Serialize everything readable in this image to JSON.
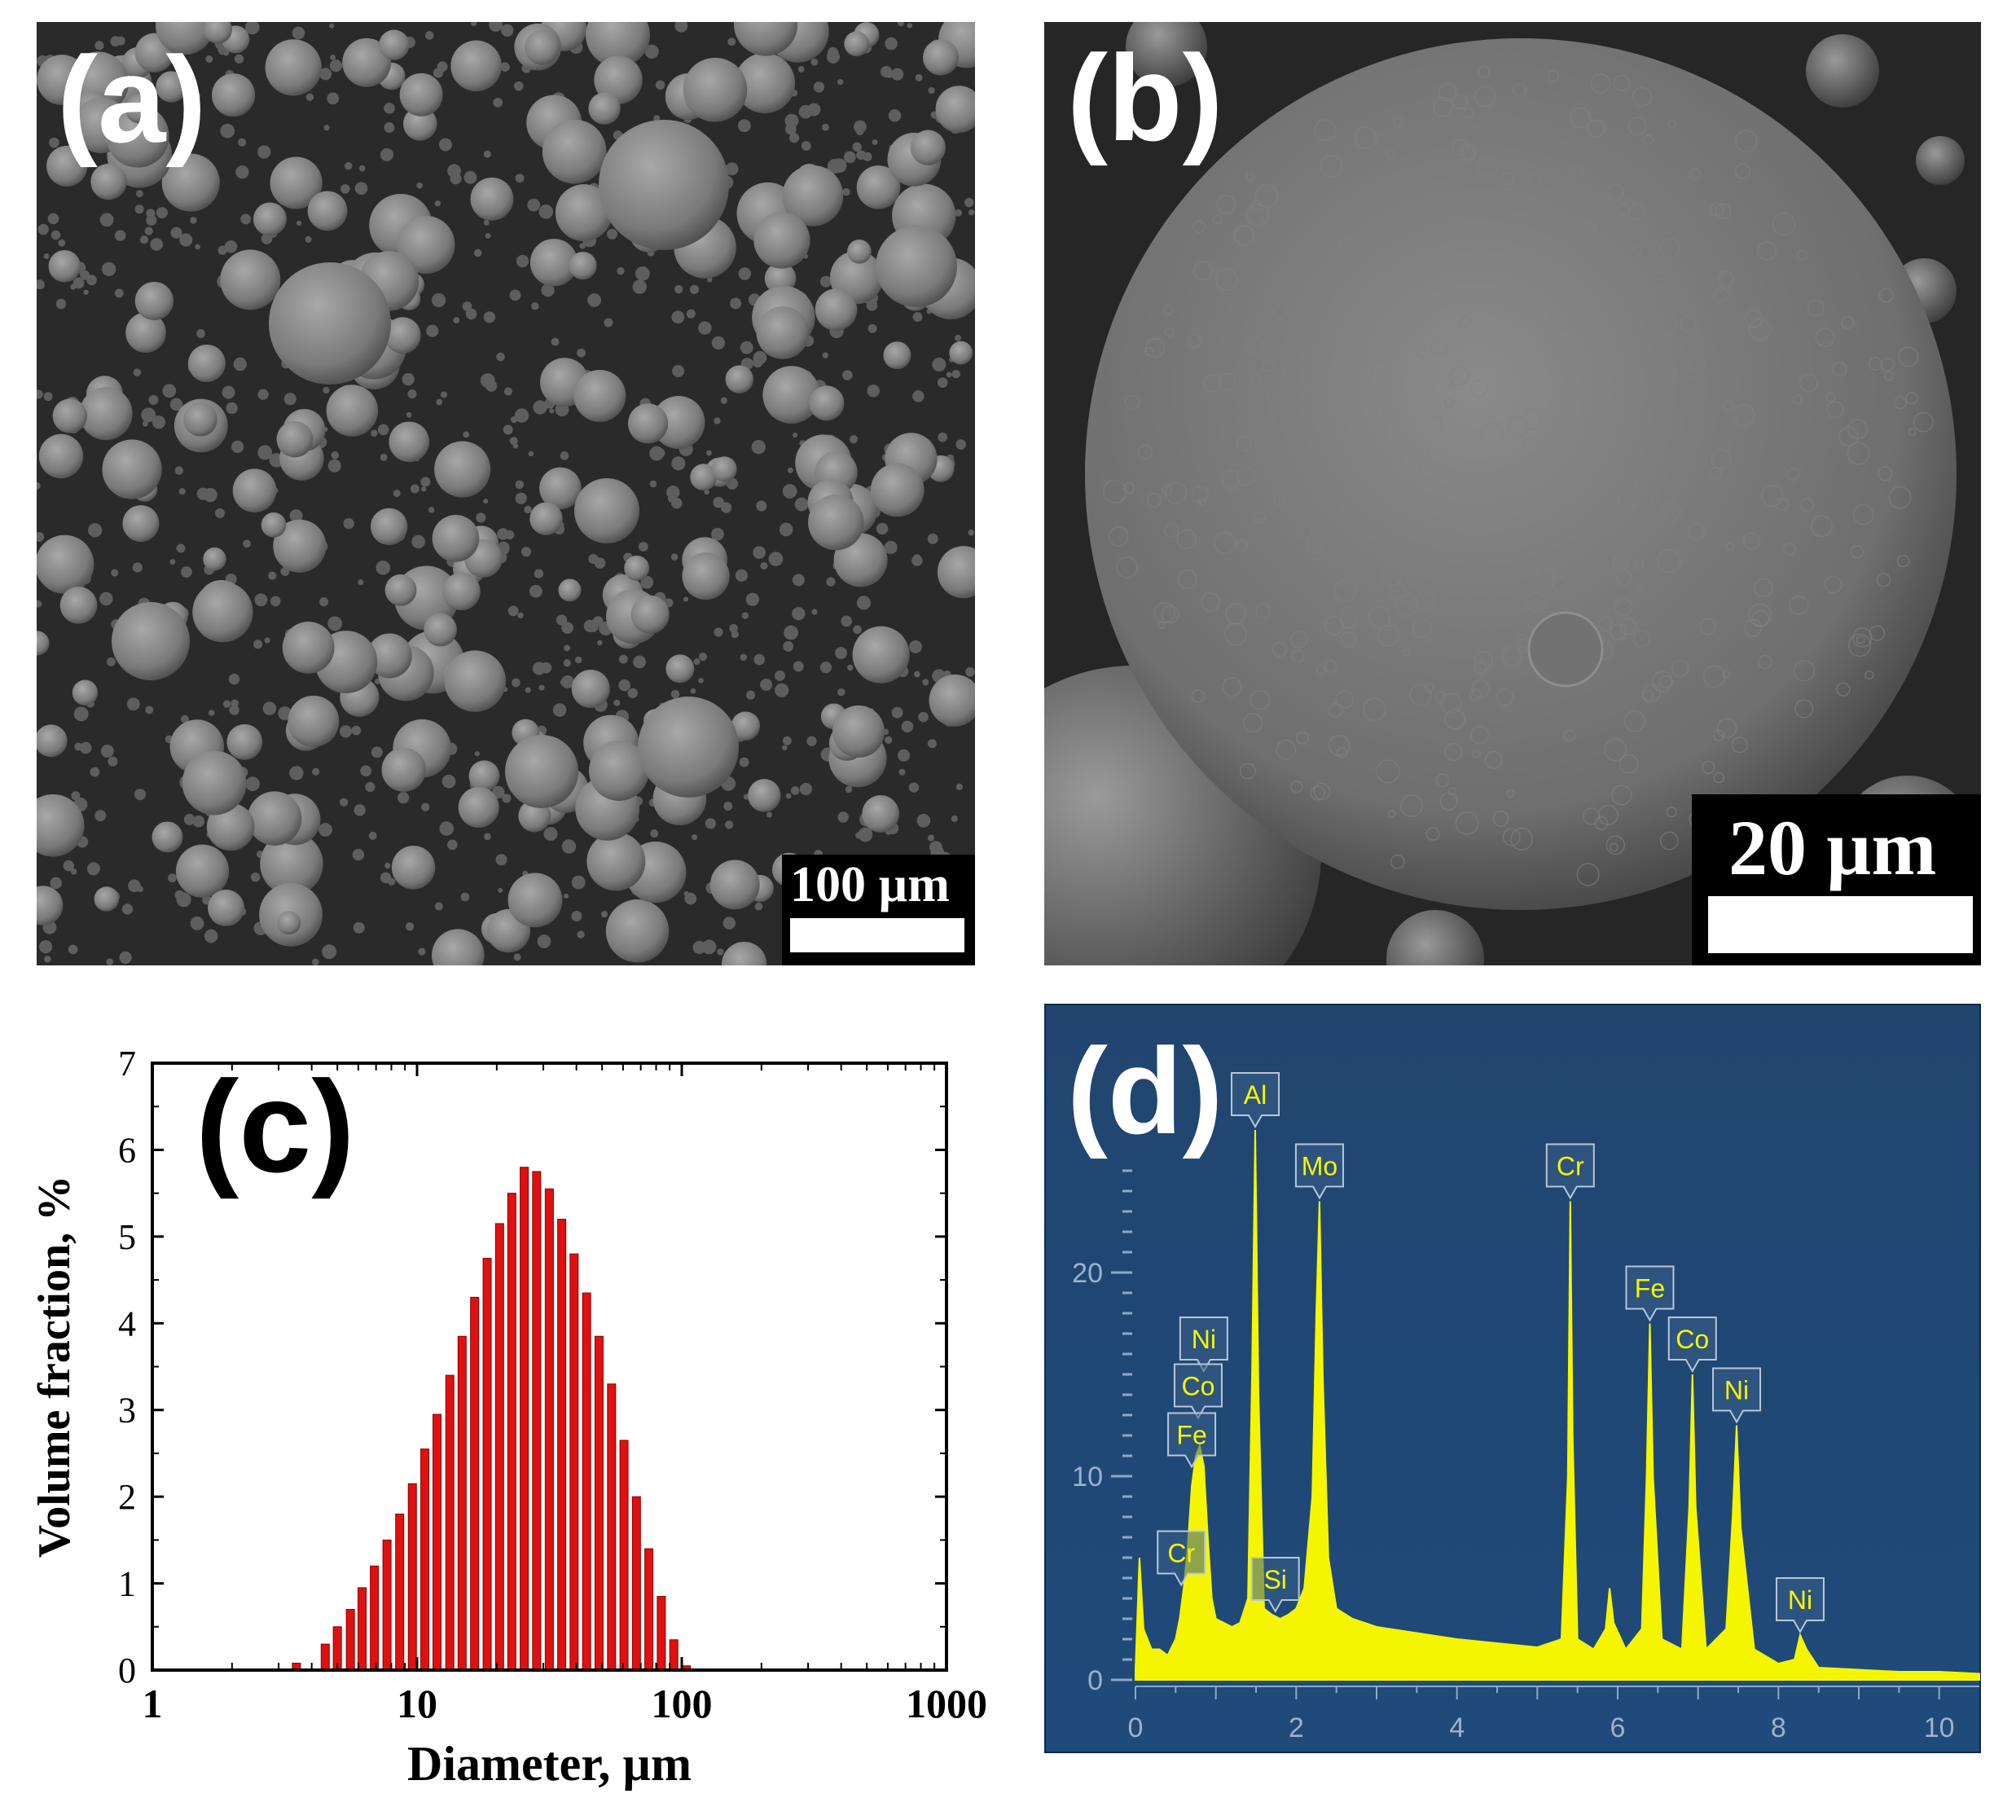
{
  "panel_a": {
    "label": "(a)",
    "scale_bar": "100 µm",
    "background": "#2a2a2a",
    "particle_color": "#7a7a7a"
  },
  "panel_b": {
    "label": "(b)",
    "scale_bar": "20 µm",
    "background": "#262626",
    "particle_color": "#6f6f6f"
  },
  "panel_c": {
    "label": "(c)"
  },
  "panel_d": {
    "label": "(d)",
    "background": "#1f4a7a",
    "spectrum_color": "#f5f500"
  },
  "chart_data": [
    {
      "type": "bar",
      "panel": "c",
      "xlabel": "Diameter, µm",
      "ylabel": "Volume fraction, %",
      "x_scale": "log",
      "xlim": [
        1,
        1000
      ],
      "ylim": [
        0,
        7
      ],
      "xticks": [
        "1",
        "10",
        "100",
        "1000"
      ],
      "yticks": [
        "0",
        "1",
        "2",
        "3",
        "4",
        "5",
        "6",
        "7"
      ],
      "bar_color": "#e01010",
      "x": [
        3.5,
        4.5,
        5.0,
        5.6,
        6.2,
        6.9,
        7.7,
        8.6,
        9.6,
        10.7,
        11.9,
        13.3,
        14.8,
        16.5,
        18.4,
        20.5,
        22.8,
        25.4,
        28.3,
        31.6,
        35.2,
        39.2,
        43.7,
        48.7,
        54.3,
        60.5,
        67.4,
        75.1,
        83.7,
        93.3,
        104
      ],
      "values": [
        0.08,
        0.3,
        0.5,
        0.7,
        0.95,
        1.2,
        1.5,
        1.8,
        2.15,
        2.55,
        2.95,
        3.4,
        3.85,
        4.3,
        4.75,
        5.15,
        5.5,
        5.8,
        5.75,
        5.55,
        5.2,
        4.8,
        4.35,
        3.85,
        3.3,
        2.65,
        2.0,
        1.4,
        0.85,
        0.35,
        0.05
      ],
      "grid": false
    },
    {
      "type": "line",
      "panel": "d",
      "xlim": [
        0,
        10.5
      ],
      "ylim": [
        0,
        28
      ],
      "xticks": [
        "0",
        "2",
        "4",
        "6",
        "8",
        "10"
      ],
      "yticks": [
        "0",
        "10",
        "20"
      ],
      "series": [
        {
          "x": [
            0.0,
            0.05,
            0.1,
            0.2,
            0.3,
            0.4,
            0.5,
            0.55,
            0.6,
            0.65,
            0.7,
            0.75,
            0.8,
            0.85,
            0.9,
            0.95,
            1.0,
            1.1,
            1.2,
            1.3,
            1.4,
            1.45,
            1.49,
            1.53,
            1.6,
            1.7,
            1.8,
            1.9,
            2.0,
            2.1,
            2.2,
            2.25,
            2.29,
            2.33,
            2.4,
            2.5,
            2.7,
            3.0,
            3.5,
            4.0,
            4.5,
            5.0,
            5.3,
            5.38,
            5.41,
            5.44,
            5.5,
            5.7,
            5.85,
            5.9,
            5.95,
            6.1,
            6.3,
            6.36,
            6.4,
            6.44,
            6.55,
            6.8,
            6.89,
            6.93,
            6.97,
            7.1,
            7.35,
            7.43,
            7.48,
            7.53,
            7.7,
            8.0,
            8.2,
            8.27,
            8.35,
            8.5,
            9.0,
            9.5,
            10.0,
            10.5
          ],
          "y": [
            0.5,
            6.0,
            2.5,
            1.5,
            1.5,
            1.2,
            2.0,
            3.0,
            4.5,
            6.5,
            9.5,
            11.0,
            11.5,
            10.5,
            7.0,
            4.0,
            3.0,
            2.8,
            2.6,
            2.8,
            4.0,
            15.0,
            27.0,
            14.0,
            3.5,
            3.2,
            3.0,
            3.2,
            3.5,
            4.5,
            9.0,
            18.0,
            23.5,
            15.0,
            6.0,
            3.5,
            3.0,
            2.6,
            2.3,
            2.0,
            1.8,
            1.6,
            2.0,
            10.0,
            23.5,
            12.0,
            2.0,
            1.5,
            2.5,
            4.5,
            2.8,
            1.5,
            2.5,
            10.0,
            17.5,
            10.0,
            2.0,
            1.5,
            8.5,
            15.0,
            8.5,
            1.5,
            2.5,
            8.0,
            12.5,
            7.5,
            1.5,
            0.8,
            1.0,
            2.2,
            1.5,
            0.6,
            0.5,
            0.4,
            0.4,
            0.3
          ]
        }
      ],
      "annotations": [
        {
          "label": "Al",
          "x": 1.49,
          "y": 27.0
        },
        {
          "label": "Mo",
          "x": 2.29,
          "y": 23.5
        },
        {
          "label": "Cr",
          "x": 5.41,
          "y": 23.5
        },
        {
          "label": "Fe",
          "x": 6.4,
          "y": 17.5
        },
        {
          "label": "Co",
          "x": 6.93,
          "y": 15.0
        },
        {
          "label": "Ni",
          "x": 7.48,
          "y": 12.5
        },
        {
          "label": "Ni",
          "x": 8.27,
          "y": 2.2
        },
        {
          "label": "Ni",
          "x": 0.85,
          "y": 15.0
        },
        {
          "label": "Co",
          "x": 0.78,
          "y": 12.7
        },
        {
          "label": "Fe",
          "x": 0.7,
          "y": 10.3
        },
        {
          "label": "Cr",
          "x": 0.57,
          "y": 4.5
        },
        {
          "label": "Si",
          "x": 1.74,
          "y": 3.2
        }
      ]
    }
  ]
}
